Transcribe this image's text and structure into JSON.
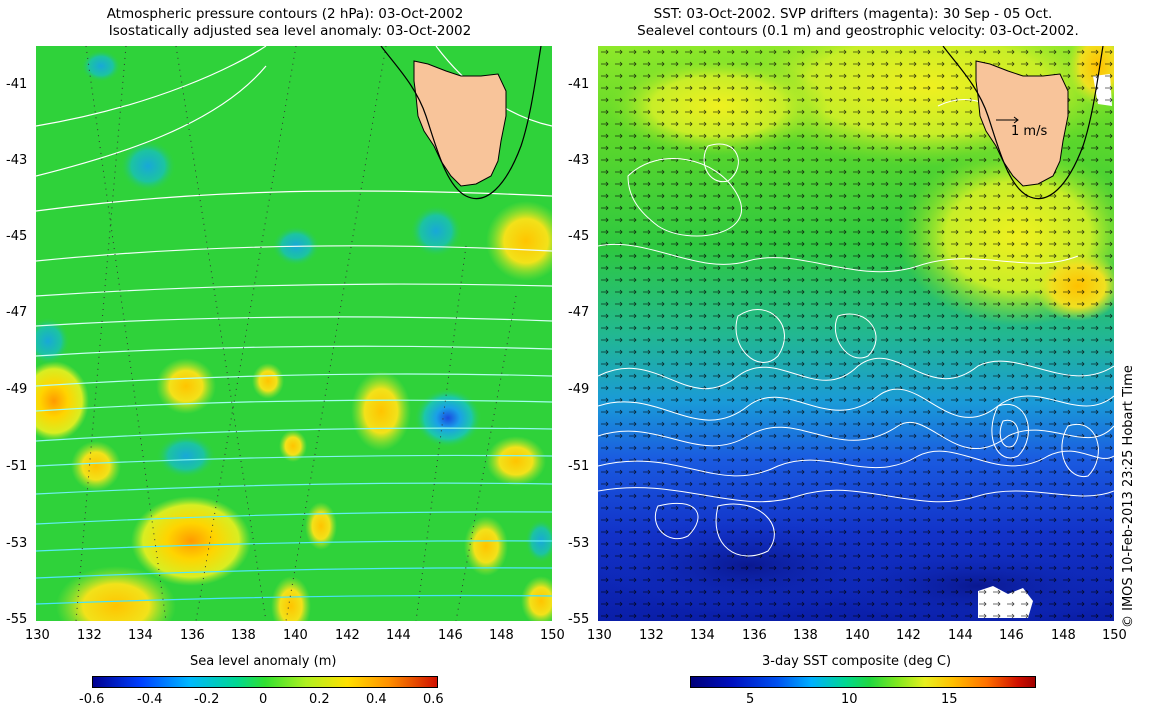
{
  "left_panel": {
    "title_line1": "Atmospheric pressure contours (2 hPa): 03-Oct-2002",
    "title_line2": "Isostatically adjusted sea level anomaly: 03-Oct-2002",
    "y_ticks": [
      "-41",
      "-43",
      "-45",
      "-47",
      "-49",
      "-51",
      "-53",
      "-55"
    ],
    "x_ticks": [
      "130",
      "132",
      "134",
      "136",
      "138",
      "140",
      "142",
      "144",
      "146",
      "148",
      "150"
    ],
    "colorbar": {
      "label": "Sea level anomaly (m)",
      "ticks": [
        "-0.6",
        "-0.4",
        "-0.2",
        "0",
        "0.2",
        "0.4",
        "0.6"
      ]
    }
  },
  "right_panel": {
    "title_line1": "SST: 03-Oct-2002. SVP drifters (magenta): 30 Sep - 05 Oct.",
    "title_line2": "Sealevel contours (0.1 m) and geostrophic velocity: 03-Oct-2002.",
    "y_ticks": [
      "-41",
      "-43",
      "-45",
      "-47",
      "-49",
      "-51",
      "-53",
      "-55"
    ],
    "x_ticks": [
      "130",
      "132",
      "134",
      "136",
      "138",
      "140",
      "142",
      "144",
      "146",
      "148",
      "150"
    ],
    "velocity_scale_label": "1 m/s",
    "colorbar": {
      "label": "3-day SST composite (deg C)",
      "ticks": [
        "5",
        "10",
        "15"
      ]
    }
  },
  "credit": "© IMOS 10-Feb-2013 23:25 Hobart Time",
  "colors": {
    "land": "#f8c49a",
    "sla_background": "#2fd23a",
    "sst_warm": "#b8f02a",
    "sst_cold": "#0a24c8"
  }
}
